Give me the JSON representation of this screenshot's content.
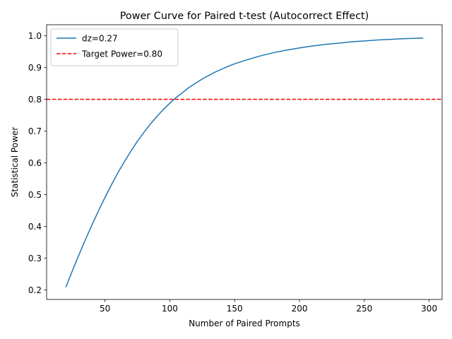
{
  "chart_data": {
    "type": "line",
    "title": "Power Curve for Paired t-test (Autocorrect Effect)",
    "xlabel": "Number of Paired Prompts",
    "ylabel": "Statistical Power",
    "xlim": [
      5,
      310
    ],
    "ylim": [
      0.17,
      1.035
    ],
    "x_ticks": [
      50,
      100,
      150,
      200,
      250,
      300
    ],
    "y_ticks": [
      0.2,
      0.3,
      0.4,
      0.5,
      0.6,
      0.7,
      0.8,
      0.9,
      1.0
    ],
    "grid": false,
    "legend_position": "upper-left",
    "series": [
      {
        "name": "dz=0.27",
        "color": "#1f77b4",
        "style": "solid",
        "x": [
          20,
          25,
          30,
          35,
          40,
          45,
          50,
          55,
          60,
          65,
          70,
          75,
          80,
          85,
          90,
          95,
          100,
          105,
          110,
          115,
          120,
          125,
          130,
          135,
          140,
          145,
          150,
          160,
          170,
          180,
          190,
          200,
          210,
          220,
          230,
          240,
          250,
          260,
          270,
          280,
          295
        ],
        "y": [
          0.21,
          0.262,
          0.311,
          0.359,
          0.405,
          0.449,
          0.491,
          0.531,
          0.569,
          0.604,
          0.637,
          0.668,
          0.696,
          0.722,
          0.746,
          0.768,
          0.788,
          0.806,
          0.822,
          0.838,
          0.851,
          0.864,
          0.875,
          0.886,
          0.895,
          0.904,
          0.912,
          0.925,
          0.937,
          0.947,
          0.955,
          0.962,
          0.968,
          0.973,
          0.977,
          0.981,
          0.984,
          0.987,
          0.989,
          0.991,
          0.993
        ]
      }
    ],
    "reference_lines": [
      {
        "name": "Target Power=0.80",
        "y": 0.8,
        "color": "#ff0000",
        "style": "dashed"
      }
    ]
  }
}
